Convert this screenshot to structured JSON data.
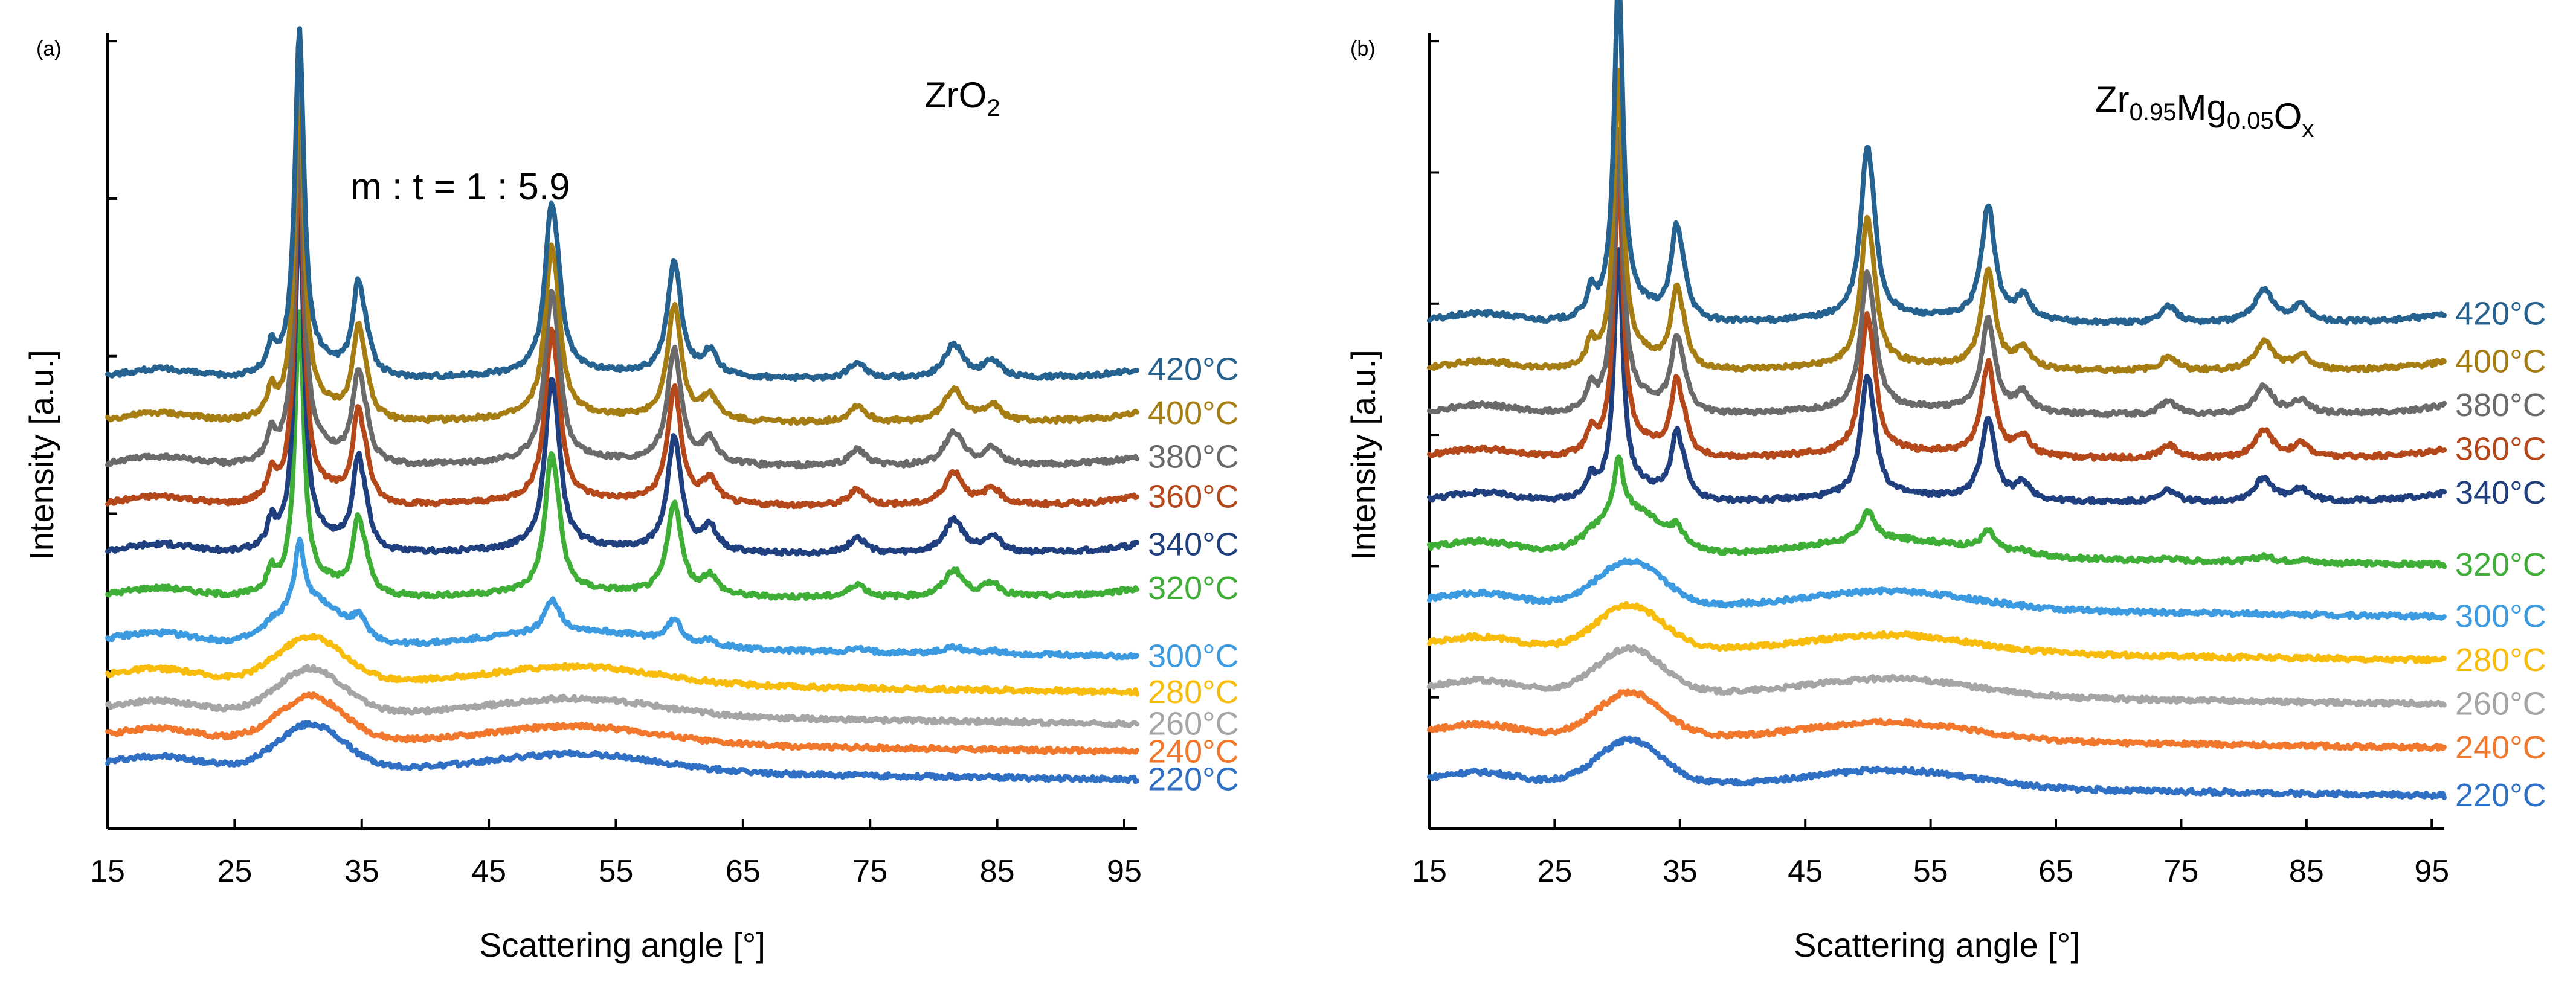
{
  "chart_data": [
    {
      "type": "line",
      "panel_label": "(a)",
      "material": "ZrO2",
      "material_parts": [
        {
          "text": "ZrO",
          "sub": "2"
        }
      ],
      "annotation": "m : t = 1 : 5.9",
      "xlabel": "Scattering angle [°]",
      "ylabel": "Intensity [a.u.]",
      "xlim": [
        15,
        96
      ],
      "x_ticks": [
        15,
        25,
        35,
        45,
        55,
        65,
        75,
        85,
        95
      ],
      "y_ticks_count": 5,
      "series": [
        {
          "name": "220°C",
          "color": "#2F6FC4",
          "phase": "amorphous",
          "baseline": 0.08,
          "peak": 0
        },
        {
          "name": "240°C",
          "color": "#F0772B",
          "phase": "amorphous",
          "baseline": 0.115,
          "peak": 0
        },
        {
          "name": "260°C",
          "color": "#A5A5A5",
          "phase": "amorphous",
          "baseline": 0.15,
          "peak": 0
        },
        {
          "name": "280°C",
          "color": "#F8BD0C",
          "phase": "amorphous",
          "baseline": 0.19,
          "peak": 0
        },
        {
          "name": "300°C",
          "color": "#3B9AE0",
          "phase": "mixed",
          "baseline": 0.235,
          "peak": 0.08
        },
        {
          "name": "320°C",
          "color": "#3FAE37",
          "phase": "crystalline",
          "baseline": 0.29,
          "peak": 0.34
        },
        {
          "name": "340°C",
          "color": "#1F3F7E",
          "phase": "crystalline",
          "baseline": 0.345,
          "peak": 0.42
        },
        {
          "name": "360°C",
          "color": "#B5481A",
          "phase": "crystalline",
          "baseline": 0.405,
          "peak": 0.42
        },
        {
          "name": "380°C",
          "color": "#6A6A6A",
          "phase": "crystalline",
          "baseline": 0.455,
          "peak": 0.42
        },
        {
          "name": "400°C",
          "color": "#A57D12",
          "phase": "crystalline",
          "baseline": 0.51,
          "peak": 0.42
        },
        {
          "name": "420°C",
          "color": "#26628F",
          "phase": "crystalline",
          "baseline": 0.565,
          "peak": 0.42
        }
      ]
    },
    {
      "type": "line",
      "panel_label": "(b)",
      "material": "Zr0.95Mg0.05Ox",
      "material_parts": [
        {
          "text": "Zr",
          "sub": "0.95"
        },
        {
          "text": "Mg",
          "sub": "0.05"
        },
        {
          "text": "O",
          "sub": "x"
        }
      ],
      "annotation": "",
      "xlabel": "Scattering angle [°]",
      "ylabel": "Intensity [a.u.]",
      "xlim": [
        15,
        96
      ],
      "x_ticks": [
        15,
        25,
        35,
        45,
        55,
        65,
        75,
        85,
        95
      ],
      "y_ticks_count": 6,
      "series": [
        {
          "name": "220°C",
          "color": "#2F6FC4",
          "phase": "amorphous",
          "baseline": 0.06,
          "peak": 0
        },
        {
          "name": "240°C",
          "color": "#F0772B",
          "phase": "amorphous",
          "baseline": 0.12,
          "peak": 0
        },
        {
          "name": "260°C",
          "color": "#A5A5A5",
          "phase": "amorphous",
          "baseline": 0.175,
          "peak": 0
        },
        {
          "name": "280°C",
          "color": "#F8BD0C",
          "phase": "amorphous",
          "baseline": 0.23,
          "peak": 0
        },
        {
          "name": "300°C",
          "color": "#3B9AE0",
          "phase": "amorphous",
          "baseline": 0.285,
          "peak": 0
        },
        {
          "name": "320°C",
          "color": "#3FAE37",
          "phase": "mixed",
          "baseline": 0.35,
          "peak": 0.07
        },
        {
          "name": "340°C",
          "color": "#1F3F7E",
          "phase": "crystalline",
          "baseline": 0.41,
          "peak": 0.3
        },
        {
          "name": "360°C",
          "color": "#B5481A",
          "phase": "crystalline",
          "baseline": 0.465,
          "peak": 0.34
        },
        {
          "name": "380°C",
          "color": "#6A6A6A",
          "phase": "crystalline",
          "baseline": 0.52,
          "peak": 0.34
        },
        {
          "name": "400°C",
          "color": "#A57D12",
          "phase": "crystalline",
          "baseline": 0.575,
          "peak": 0.36
        },
        {
          "name": "420°C",
          "color": "#26628F",
          "phase": "crystalline",
          "baseline": 0.635,
          "peak": 0.42
        }
      ]
    }
  ]
}
